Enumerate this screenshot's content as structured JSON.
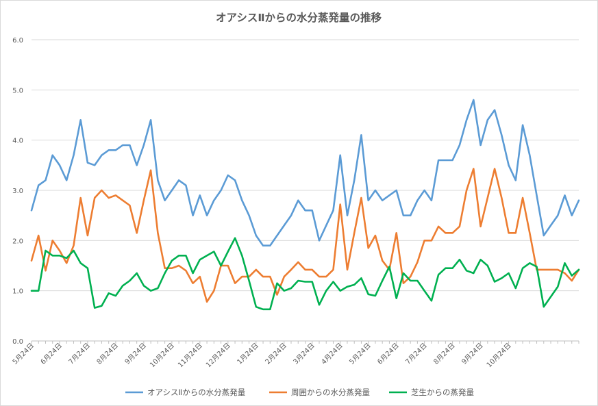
{
  "chart_data": {
    "type": "line",
    "title": "オアシスⅡからの水分蒸発量の推移",
    "xlabel": "",
    "ylabel": "",
    "ylim": [
      0,
      6
    ],
    "yticks": [
      "0.0",
      "1.0",
      "2.0",
      "3.0",
      "4.0",
      "5.0",
      "6.0"
    ],
    "grid": true,
    "legend_position": "bottom",
    "x_tick_labels": [
      "5月24日",
      "6月24日",
      "7月24日",
      "8月24日",
      "9月24日",
      "10月24日",
      "11月24日",
      "12月24日",
      "1月24日",
      "2月24日",
      "3月24日",
      "4月24日",
      "5月24日",
      "6月24日",
      "7月24日",
      "8月24日",
      "9月24日",
      "10月24日"
    ],
    "points_per_month": 4,
    "series": [
      {
        "name": "オアシスⅡからの水分蒸発量",
        "color": "#5B9BD5",
        "values": [
          2.6,
          3.1,
          3.2,
          3.7,
          3.5,
          3.2,
          3.7,
          4.4,
          3.55,
          3.5,
          3.7,
          3.8,
          3.8,
          3.9,
          3.9,
          3.5,
          3.9,
          4.4,
          3.2,
          2.8,
          3.0,
          3.2,
          3.1,
          2.5,
          2.9,
          2.5,
          2.8,
          3.0,
          3.3,
          3.2,
          2.8,
          2.5,
          2.1,
          1.9,
          1.9,
          2.1,
          2.3,
          2.5,
          2.8,
          2.6,
          2.6,
          2.0,
          2.3,
          2.6,
          3.7,
          2.5,
          3.2,
          4.1,
          2.8,
          3.0,
          2.8,
          2.9,
          3.0,
          2.5,
          2.5,
          2.8,
          3.0,
          2.8,
          3.6,
          3.6,
          3.6,
          3.9,
          4.4,
          4.8,
          3.9,
          4.4,
          4.6,
          4.1,
          3.5,
          3.2,
          4.3,
          3.7,
          2.9,
          2.1,
          2.3,
          2.5,
          2.9,
          2.5,
          2.8
        ]
      },
      {
        "name": "周囲からの水分蒸発量",
        "color": "#ED7D31",
        "values": [
          1.6,
          2.1,
          1.4,
          2.0,
          1.8,
          1.55,
          1.9,
          2.85,
          2.1,
          2.85,
          3.0,
          2.85,
          2.9,
          2.8,
          2.7,
          2.15,
          2.8,
          3.4,
          2.15,
          1.45,
          1.45,
          1.5,
          1.4,
          1.15,
          1.28,
          0.78,
          1.0,
          1.5,
          1.5,
          1.15,
          1.28,
          1.28,
          1.42,
          1.28,
          1.28,
          0.92,
          1.28,
          1.42,
          1.57,
          1.42,
          1.42,
          1.28,
          1.28,
          1.42,
          2.72,
          1.42,
          2.15,
          2.85,
          1.85,
          2.1,
          1.6,
          1.42,
          2.15,
          1.15,
          1.28,
          1.57,
          2.0,
          2.0,
          2.28,
          2.15,
          2.15,
          2.28,
          3.0,
          3.43,
          2.28,
          2.85,
          3.43,
          2.85,
          2.15,
          2.15,
          2.85,
          2.15,
          1.42,
          1.42,
          1.42,
          1.42,
          1.35,
          1.2,
          1.42
        ]
      },
      {
        "name": "芝生からの蒸発量",
        "color": "#00B050",
        "values": [
          1.0,
          1.0,
          1.8,
          1.7,
          1.7,
          1.65,
          1.8,
          1.55,
          1.45,
          0.66,
          0.7,
          0.95,
          0.9,
          1.1,
          1.2,
          1.35,
          1.1,
          1.0,
          1.05,
          1.35,
          1.6,
          1.7,
          1.7,
          1.35,
          1.62,
          1.7,
          1.78,
          1.5,
          1.78,
          2.05,
          1.7,
          1.2,
          0.68,
          0.63,
          0.63,
          1.15,
          1.0,
          1.05,
          1.2,
          1.18,
          1.18,
          0.72,
          1.0,
          1.18,
          1.0,
          1.08,
          1.12,
          1.25,
          0.93,
          0.9,
          1.2,
          1.48,
          0.85,
          1.35,
          1.2,
          1.2,
          1.0,
          0.8,
          1.32,
          1.45,
          1.45,
          1.62,
          1.4,
          1.35,
          1.62,
          1.5,
          1.18,
          1.25,
          1.35,
          1.05,
          1.45,
          1.55,
          1.48,
          0.68,
          0.88,
          1.08,
          1.55,
          1.3,
          1.42
        ]
      }
    ]
  }
}
